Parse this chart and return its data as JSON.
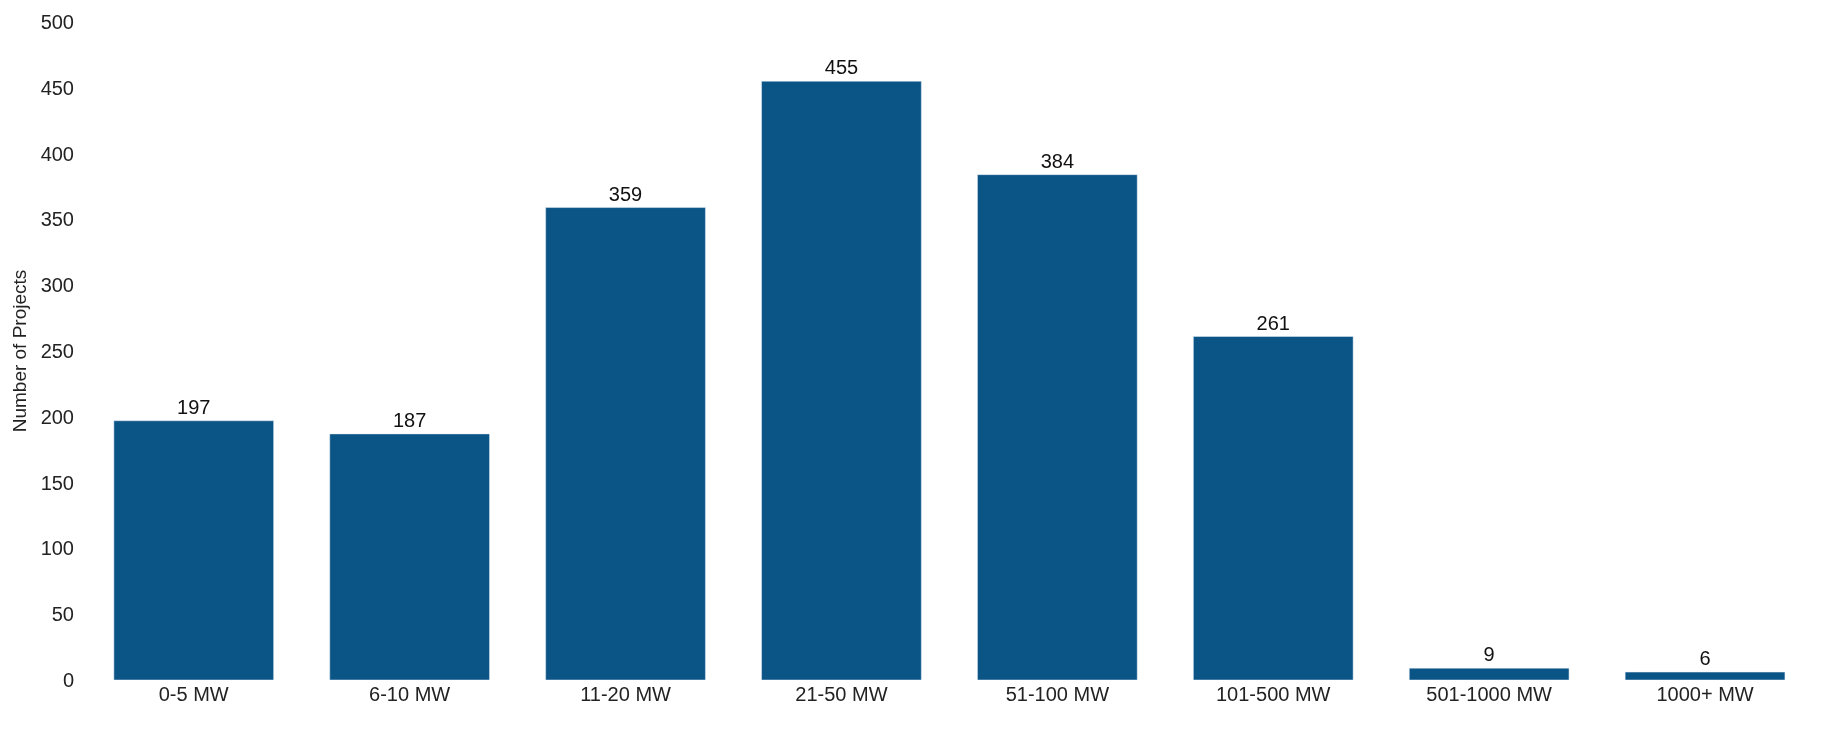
{
  "chart_data": {
    "type": "bar",
    "ylabel": "Number of Projects",
    "categories": [
      "0-5 MW",
      "6-10 MW",
      "11-20 MW",
      "21-50 MW",
      "51-100 MW",
      "101-500 MW",
      "501-1000 MW",
      "1000+ MW"
    ],
    "values": [
      197,
      187,
      359,
      455,
      384,
      261,
      9,
      6
    ],
    "color": "#0b5486",
    "ylim": [
      0,
      500
    ],
    "yticks": [
      0,
      50,
      100,
      150,
      200,
      250,
      300,
      350,
      400,
      450,
      500
    ],
    "data_labels": true
  }
}
